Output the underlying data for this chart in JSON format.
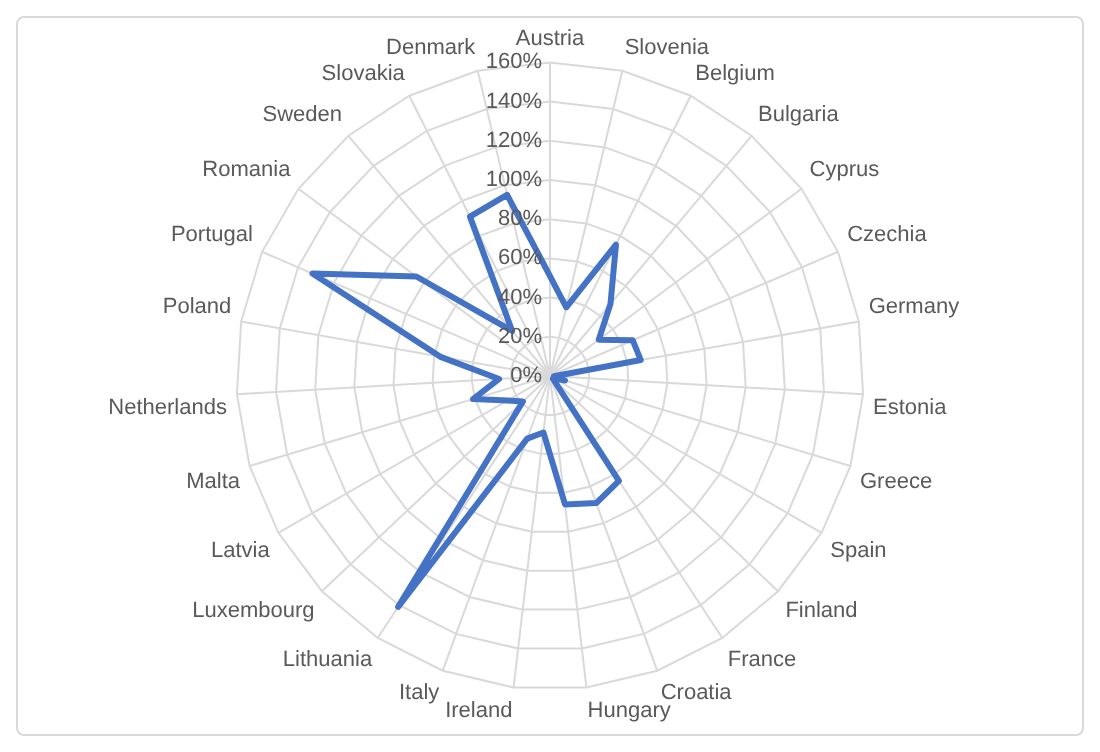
{
  "chart_data": {
    "type": "radar",
    "categories": [
      "Austria",
      "Slovenia",
      "Belgium",
      "Bulgaria",
      "Cyprus",
      "Czechia",
      "Germany",
      "Estonia",
      "Greece",
      "Spain",
      "Finland",
      "France",
      "Croatia",
      "Hungary",
      "Ireland",
      "Italy",
      "Lithuania",
      "Luxembourg",
      "Latvia",
      "Malta",
      "Netherlands",
      "Poland",
      "Portugal",
      "Romania",
      "Sweden",
      "Slovakia",
      "Denmark"
    ],
    "series": [
      {
        "color": "#4472c4",
        "values": [
          0.51,
          0.36,
          0.75,
          0.48,
          0.31,
          0.46,
          0.47,
          0.02,
          0.08,
          0.02,
          0.02,
          0.64,
          0.69,
          0.66,
          0.29,
          0.34,
          1.41,
          0.19,
          0.25,
          0.41,
          0.26,
          0.57,
          1.32,
          0.85,
          0.3,
          0.91,
          0.95
        ]
      }
    ],
    "ylim": [
      0,
      1.6
    ],
    "yticks": [
      {
        "value": 0,
        "label": "0%"
      },
      {
        "value": 0.2,
        "label": "20%"
      },
      {
        "value": 0.4,
        "label": "40%"
      },
      {
        "value": 0.6,
        "label": "60%"
      },
      {
        "value": 0.8,
        "label": "80%"
      },
      {
        "value": 1,
        "label": "100%"
      },
      {
        "value": 1.2,
        "label": "120%"
      },
      {
        "value": 1.4,
        "label": "140%"
      },
      {
        "value": 1.6,
        "label": "160%"
      }
    ],
    "grid": true,
    "legend": false,
    "marker": "none"
  }
}
